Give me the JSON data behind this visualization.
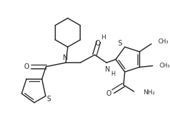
{
  "background_color": "#ffffff",
  "line_color": "#2a2a2a",
  "line_width": 1.1,
  "figsize": [
    2.46,
    1.86
  ],
  "dpi": 100,
  "xlim": [
    0,
    246
  ],
  "ylim": [
    0,
    186
  ]
}
